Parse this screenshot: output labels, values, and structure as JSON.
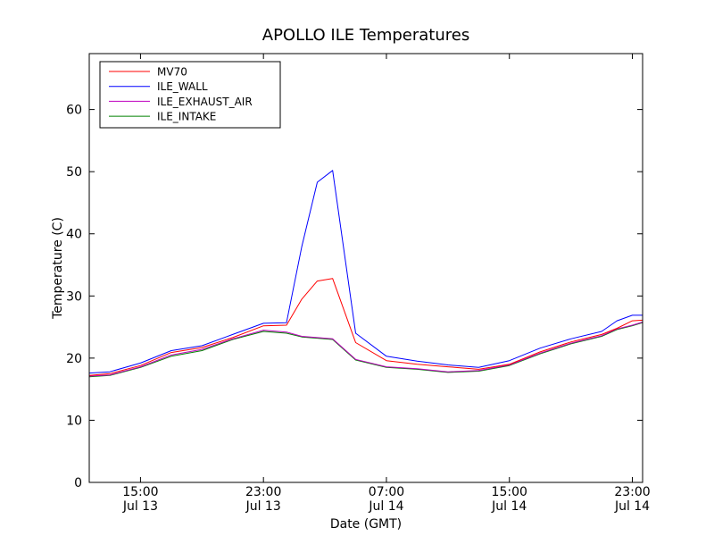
{
  "chart_data": {
    "type": "line",
    "title": "APOLLO ILE Temperatures",
    "xlabel": "Date (GMT)",
    "ylabel": "Temperature (C)",
    "ylim": [
      0,
      69
    ],
    "xlim": [
      "Jul 13 11:40",
      "Jul 14 23:40"
    ],
    "yticks": [
      0,
      10,
      20,
      30,
      40,
      50,
      60
    ],
    "xticks": [
      {
        "x": "Jul 13 15:00",
        "time": "15:00",
        "date": "Jul 13"
      },
      {
        "x": "Jul 13 23:00",
        "time": "23:00",
        "date": "Jul 13"
      },
      {
        "x": "Jul 14 07:00",
        "time": "07:00",
        "date": "Jul 14"
      },
      {
        "x": "Jul 14 15:00",
        "time": "15:00",
        "date": "Jul 14"
      },
      {
        "x": "Jul 14 23:00",
        "time": "23:00",
        "date": "Jul 14"
      }
    ],
    "legend_position": "top-left",
    "grid": false,
    "x": [
      "Jul 13 11:40",
      "Jul 13 13:00",
      "Jul 13 15:00",
      "Jul 13 17:00",
      "Jul 13 19:00",
      "Jul 13 21:00",
      "Jul 13 23:00",
      "Jul 14 00:30",
      "Jul 14 01:30",
      "Jul 14 02:30",
      "Jul 14 03:30",
      "Jul 14 05:00",
      "Jul 14 07:00",
      "Jul 14 09:00",
      "Jul 14 11:00",
      "Jul 14 13:00",
      "Jul 14 15:00",
      "Jul 14 17:00",
      "Jul 14 19:00",
      "Jul 14 21:00",
      "Jul 14 22:00",
      "Jul 14 23:00",
      "Jul 14 23:40"
    ],
    "series": [
      {
        "name": "MV70",
        "color": "#ff0000",
        "values": [
          17.2,
          17.5,
          18.8,
          20.9,
          21.7,
          23.3,
          25.2,
          25.3,
          29.5,
          32.4,
          32.8,
          22.5,
          19.6,
          19.0,
          18.6,
          18.2,
          19.0,
          21.0,
          22.6,
          23.8,
          24.8,
          26.0,
          26.1
        ]
      },
      {
        "name": "ILE_WALL",
        "color": "#0000ff",
        "values": [
          17.6,
          17.8,
          19.2,
          21.2,
          22.0,
          23.8,
          25.6,
          25.7,
          38.0,
          48.3,
          50.2,
          24.0,
          20.3,
          19.5,
          18.9,
          18.5,
          19.6,
          21.6,
          23.1,
          24.3,
          26.0,
          26.9,
          26.9
        ]
      },
      {
        "name": "ILE_EXHAUST_AIR",
        "color": "#bf00bf",
        "values": [
          17.1,
          17.3,
          18.6,
          20.5,
          21.4,
          23.1,
          24.5,
          24.2,
          23.5,
          23.3,
          23.1,
          19.8,
          18.6,
          18.3,
          17.8,
          18.0,
          18.9,
          20.8,
          22.4,
          23.6,
          24.7,
          25.3,
          25.8
        ]
      },
      {
        "name": "ILE_INTAKE",
        "color": "#008000",
        "values": [
          17.0,
          17.2,
          18.5,
          20.3,
          21.2,
          23.0,
          24.3,
          24.0,
          23.4,
          23.2,
          23.0,
          19.7,
          18.5,
          18.2,
          17.7,
          17.9,
          18.8,
          20.7,
          22.3,
          23.5,
          24.6,
          25.2,
          25.7
        ]
      }
    ]
  }
}
